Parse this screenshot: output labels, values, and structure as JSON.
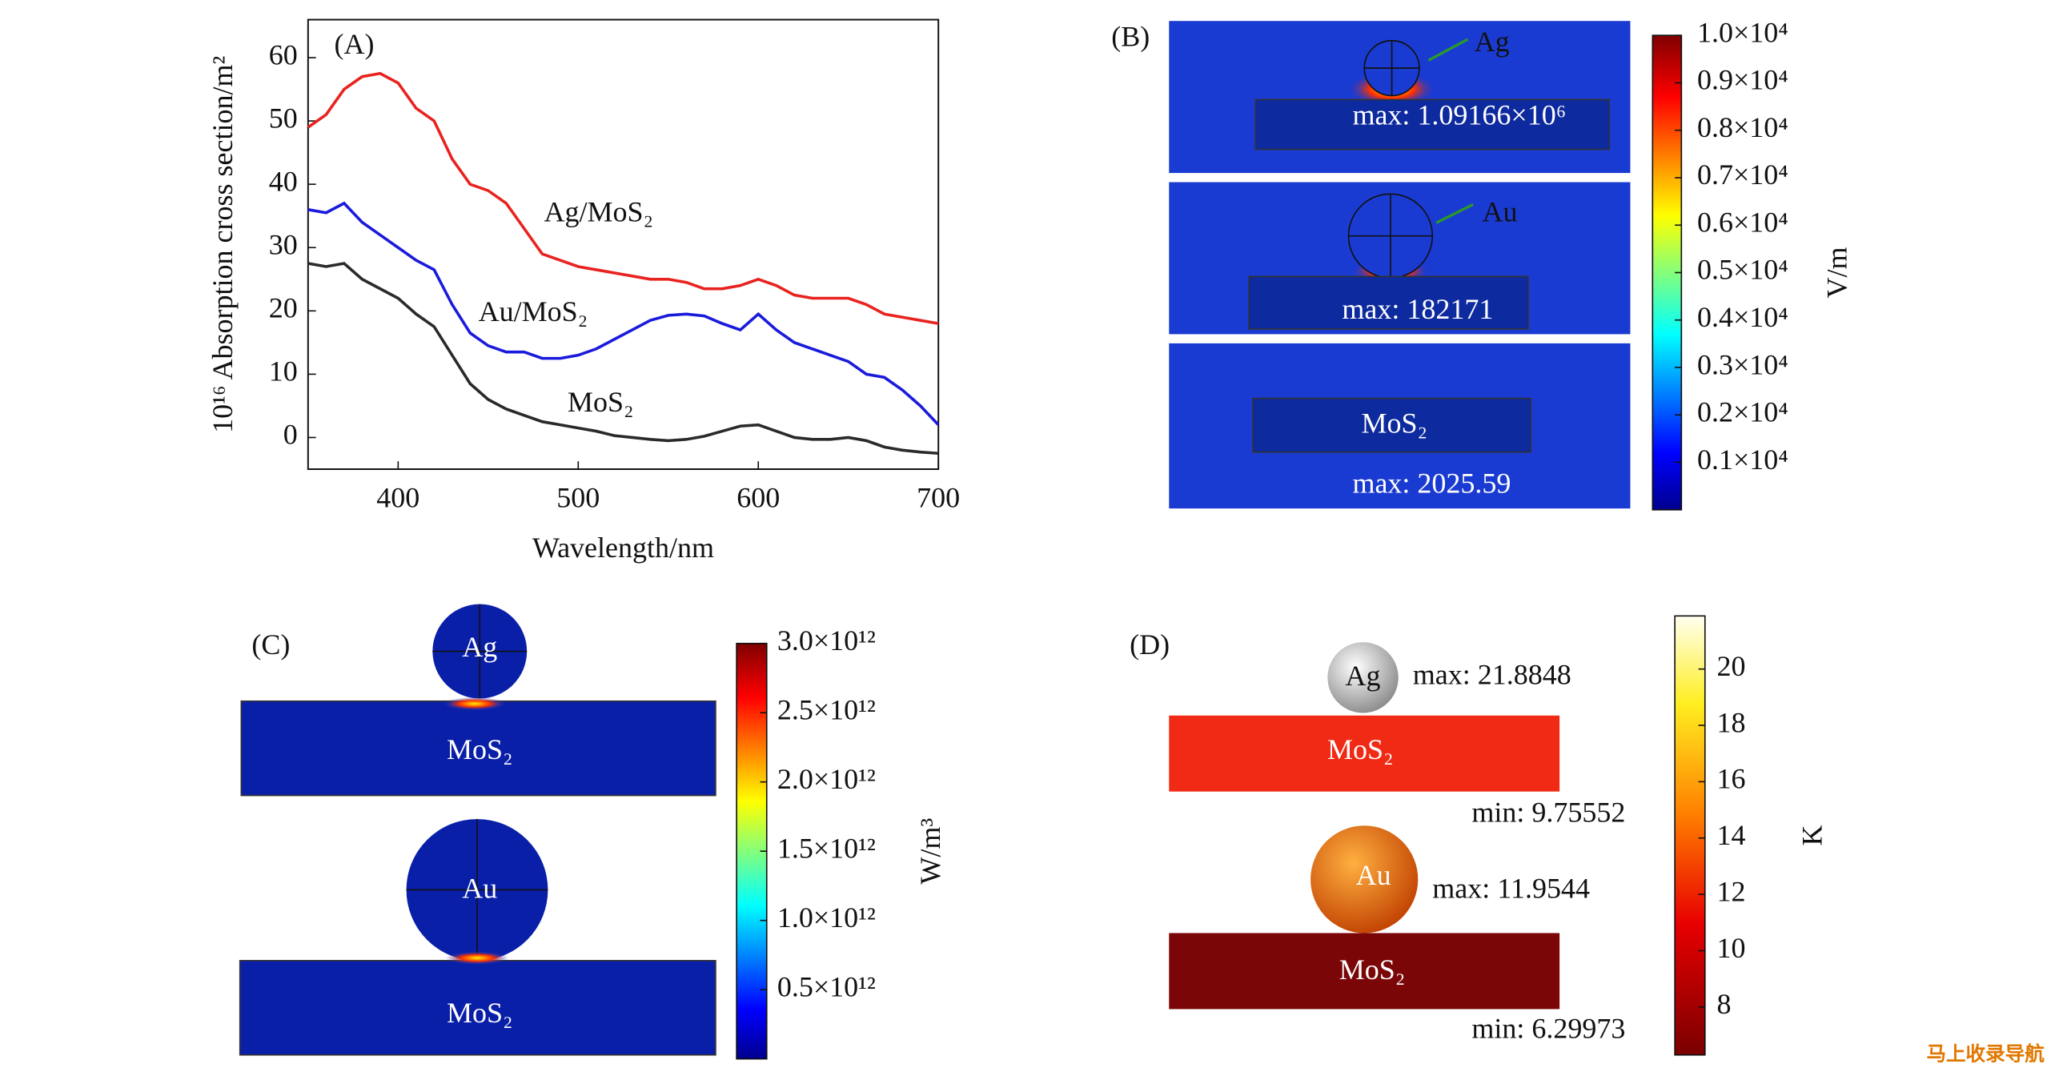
{
  "chart_data": [
    {
      "type": "line",
      "title": "(A)",
      "x_label": "Wavelength/nm",
      "y_label": "10¹⁶ Absorption cross section/m²",
      "x": [
        350,
        360,
        370,
        380,
        390,
        400,
        410,
        420,
        430,
        440,
        450,
        460,
        470,
        480,
        490,
        500,
        510,
        520,
        530,
        540,
        550,
        560,
        570,
        580,
        590,
        600,
        610,
        620,
        630,
        640,
        650,
        660,
        670,
        680,
        690,
        700
      ],
      "series": [
        {
          "name": "Ag/MoS₂",
          "color": "#e8231f",
          "values": [
            49,
            51,
            55,
            57,
            57.5,
            56,
            52,
            50,
            44,
            40,
            39,
            37,
            33,
            29,
            28,
            27,
            26.5,
            26,
            25.5,
            25,
            25,
            24.5,
            23.5,
            23.5,
            24,
            25,
            24,
            22.5,
            22,
            22,
            22,
            21,
            19.5,
            19,
            18.5,
            18
          ]
        },
        {
          "name": "Au/MoS₂",
          "color": "#1a1adc",
          "values": [
            36,
            35.5,
            37,
            34,
            32,
            30,
            28,
            26.5,
            21,
            16.5,
            14.5,
            13.5,
            13.5,
            12.5,
            12.5,
            13,
            14,
            15.5,
            17,
            18.5,
            19.3,
            19.5,
            19.2,
            18,
            17,
            19.5,
            17,
            15,
            14,
            13,
            12,
            10,
            9.5,
            7.5,
            5,
            2
          ]
        },
        {
          "name": "MoS₂",
          "color": "#2a2a2a",
          "values": [
            27.5,
            27,
            27.5,
            25,
            23.5,
            22,
            19.5,
            17.5,
            13,
            8.5,
            6,
            4.5,
            3.5,
            2.5,
            2,
            1.5,
            1,
            0.3,
            0,
            -0.3,
            -0.5,
            -0.3,
            0.2,
            1,
            1.8,
            2,
            1,
            0,
            -0.3,
            -0.3,
            0,
            -0.5,
            -1.5,
            -2,
            -2.3,
            -2.5
          ]
        }
      ],
      "xlim": [
        350,
        700
      ],
      "xticks": [
        400,
        500,
        600,
        700
      ],
      "ylim": [
        -5,
        66
      ],
      "yticks": [
        0,
        10,
        20,
        30,
        40,
        50,
        60
      ]
    },
    {
      "type": "colorbar",
      "title": "(B)",
      "axis_label": "V/m",
      "clim": [
        0,
        10000
      ],
      "ticks": [
        {
          "value": 1000,
          "label": "0.1×10⁴"
        },
        {
          "value": 2000,
          "label": "0.2×10⁴"
        },
        {
          "value": 3000,
          "label": "0.3×10⁴"
        },
        {
          "value": 4000,
          "label": "0.4×10⁴"
        },
        {
          "value": 5000,
          "label": "0.5×10⁴"
        },
        {
          "value": 6000,
          "label": "0.6×10⁴"
        },
        {
          "value": 7000,
          "label": "0.7×10⁴"
        },
        {
          "value": 8000,
          "label": "0.8×10⁴"
        },
        {
          "value": 9000,
          "label": "0.9×10⁴"
        },
        {
          "value": 10000,
          "label": "1.0×10⁴"
        }
      ],
      "annotations": [
        "Ag",
        "max: 1.09166×10⁶",
        "Au",
        "max: 182171",
        "MoS₂",
        "max: 2025.59"
      ]
    },
    {
      "type": "colorbar",
      "title": "(C)",
      "axis_label": "W/m³",
      "clim": [
        0,
        3000000000000
      ],
      "ticks": [
        {
          "value": 500000000000,
          "label": "0.5×10¹²"
        },
        {
          "value": 1000000000000,
          "label": "1.0×10¹²"
        },
        {
          "value": 1500000000000,
          "label": "1.5×10¹²"
        },
        {
          "value": 2000000000000,
          "label": "2.0×10¹²"
        },
        {
          "value": 2500000000000,
          "label": "2.5×10¹²"
        },
        {
          "value": 3000000000000,
          "label": "3.0×10¹²"
        }
      ],
      "annotations": [
        "Ag",
        "MoS₂",
        "Au",
        "MoS₂"
      ]
    },
    {
      "type": "colorbar",
      "title": "(D)",
      "axis_label": "K",
      "clim": [
        6.29973,
        21.8848
      ],
      "ticks": [
        8,
        10,
        12,
        14,
        16,
        18,
        20
      ],
      "annotations": [
        "Ag",
        "max: 21.8848",
        "MoS₂",
        "min: 9.75552",
        "Au",
        "max: 11.9544",
        "MoS₂",
        "min: 6.29973"
      ]
    }
  ],
  "watermark": "马上收录导航"
}
